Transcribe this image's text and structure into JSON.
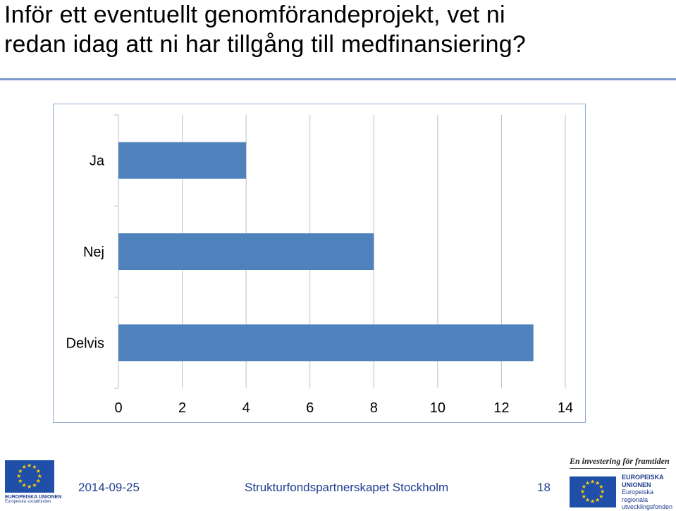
{
  "slide": {
    "title_line1": "Inför ett eventuellt genomförandeprojekt, vet ni",
    "title_line2": "redan idag att ni har tillgång till medfinansiering?"
  },
  "footer": {
    "date": "2014-09-25",
    "center": "Strukturfondspartnerskapet Stockholm",
    "page": "18",
    "tagline": "En investering för framtiden",
    "logo_left_line1": "EUROPEISKA UNIONEN",
    "logo_left_line2": "Europeiska socialfonden",
    "logo_right_line1": "EUROPEISKA",
    "logo_right_line2": "UNIONEN",
    "logo_right_line3": "Europeiska",
    "logo_right_line4": "regionala",
    "logo_right_line5": "utvecklingsfonden"
  },
  "colors": {
    "bar": "#4f81bd",
    "grid": "#bfbfbf",
    "frame_border": "#8fa9cf",
    "rule": "#7b9ac5"
  },
  "chart_data": {
    "type": "bar",
    "orientation": "horizontal",
    "categories": [
      "Ja",
      "Nej",
      "Delvis"
    ],
    "values": [
      4,
      8,
      13
    ],
    "xlim": [
      0,
      14
    ],
    "xticks": [
      0,
      2,
      4,
      6,
      8,
      10,
      12,
      14
    ],
    "grid": true,
    "legend": "none",
    "title": "",
    "xlabel": "",
    "ylabel": ""
  }
}
